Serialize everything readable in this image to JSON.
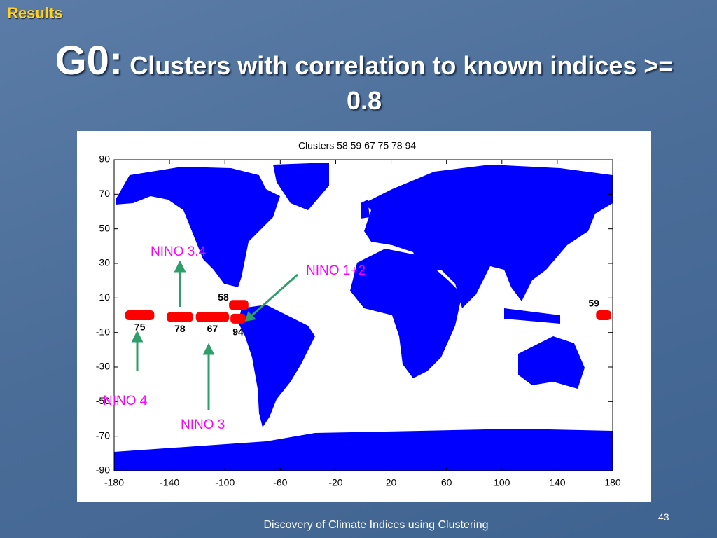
{
  "header": "Results",
  "title": {
    "lead": "G0:",
    "text": "Clusters with correlation to known indices >= 0.8"
  },
  "chart_data": {
    "type": "map",
    "title": "Clusters  58  59  67  75  78  94",
    "xlim": [
      -180,
      180
    ],
    "ylim": [
      -90,
      90
    ],
    "xticks": [
      -180,
      -140,
      -100,
      -60,
      -20,
      20,
      60,
      100,
      140,
      180
    ],
    "yticks": [
      90,
      70,
      50,
      30,
      10,
      -10,
      -30,
      -50,
      -70,
      -90
    ],
    "color": "#ff0000",
    "clusters": [
      {
        "name": "75",
        "lon": [
          -172,
          -151
        ],
        "lat": 0
      },
      {
        "name": "78",
        "lon": [
          -142,
          -123
        ],
        "lat": -1
      },
      {
        "name": "67",
        "lon": [
          -121,
          -97
        ],
        "lat": -1
      },
      {
        "name": "94",
        "lon": [
          -96,
          -85
        ],
        "lat": -2
      },
      {
        "name": "58",
        "lon": [
          -97,
          -83
        ],
        "lat": 6
      },
      {
        "name": "59",
        "lon": [
          168,
          179
        ],
        "lat": 0
      }
    ],
    "annotations": [
      "NINO 3.4",
      "NINO 1+2",
      "NINO 4",
      "NINO 3"
    ]
  },
  "footer": "Discovery of Climate Indices using Clustering",
  "page_number": "43"
}
